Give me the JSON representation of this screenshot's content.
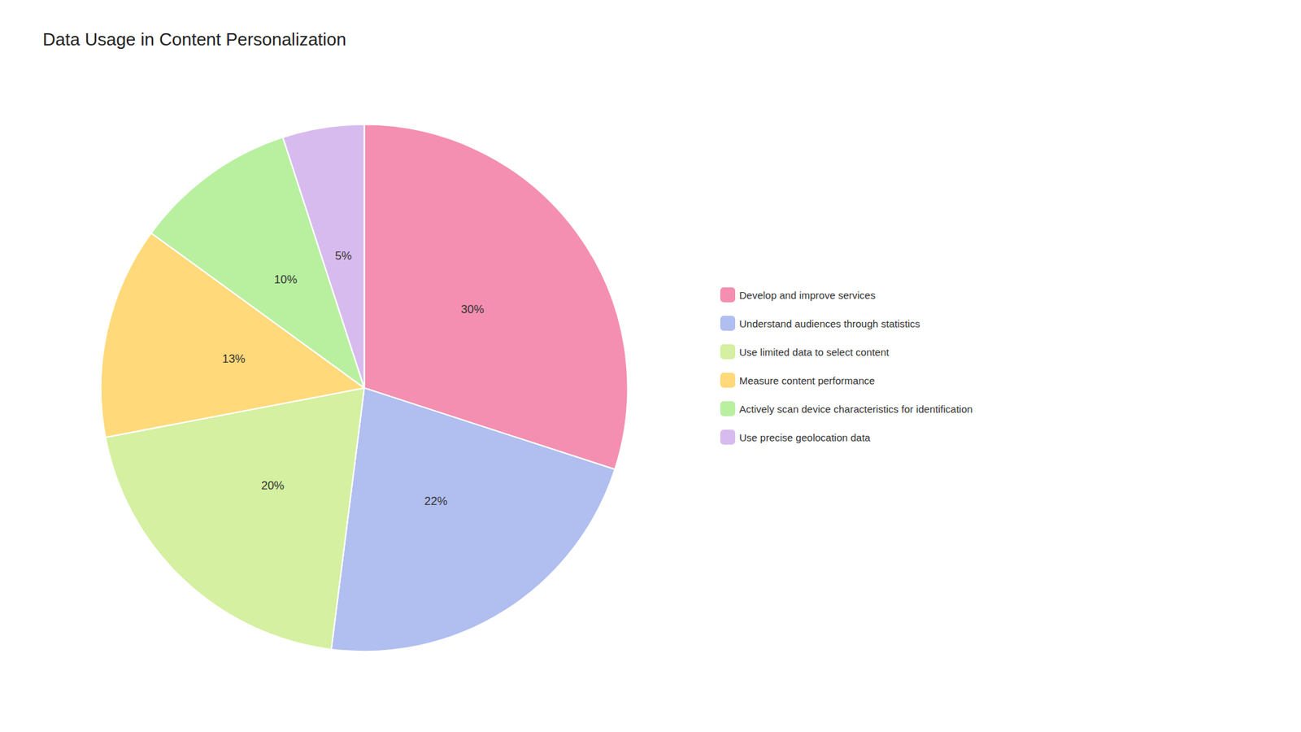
{
  "chart_data": {
    "type": "pie",
    "title": "Data Usage in Content Personalization",
    "categories": [
      "Develop and improve services",
      "Understand audiences through statistics",
      "Use limited data to select content",
      "Measure content performance",
      "Actively scan device characteristics for identification",
      "Use precise geolocation data"
    ],
    "values": [
      30,
      22,
      20,
      13,
      10,
      5
    ],
    "value_labels": [
      "30%",
      "22%",
      "20%",
      "13%",
      "10%",
      "5%"
    ],
    "colors": [
      "#F48FB1",
      "#B0BEF0",
      "#D4F0A0",
      "#FFD97A",
      "#B8F0A0",
      "#D8BBEE"
    ],
    "data_labels": true,
    "legend": "right"
  }
}
